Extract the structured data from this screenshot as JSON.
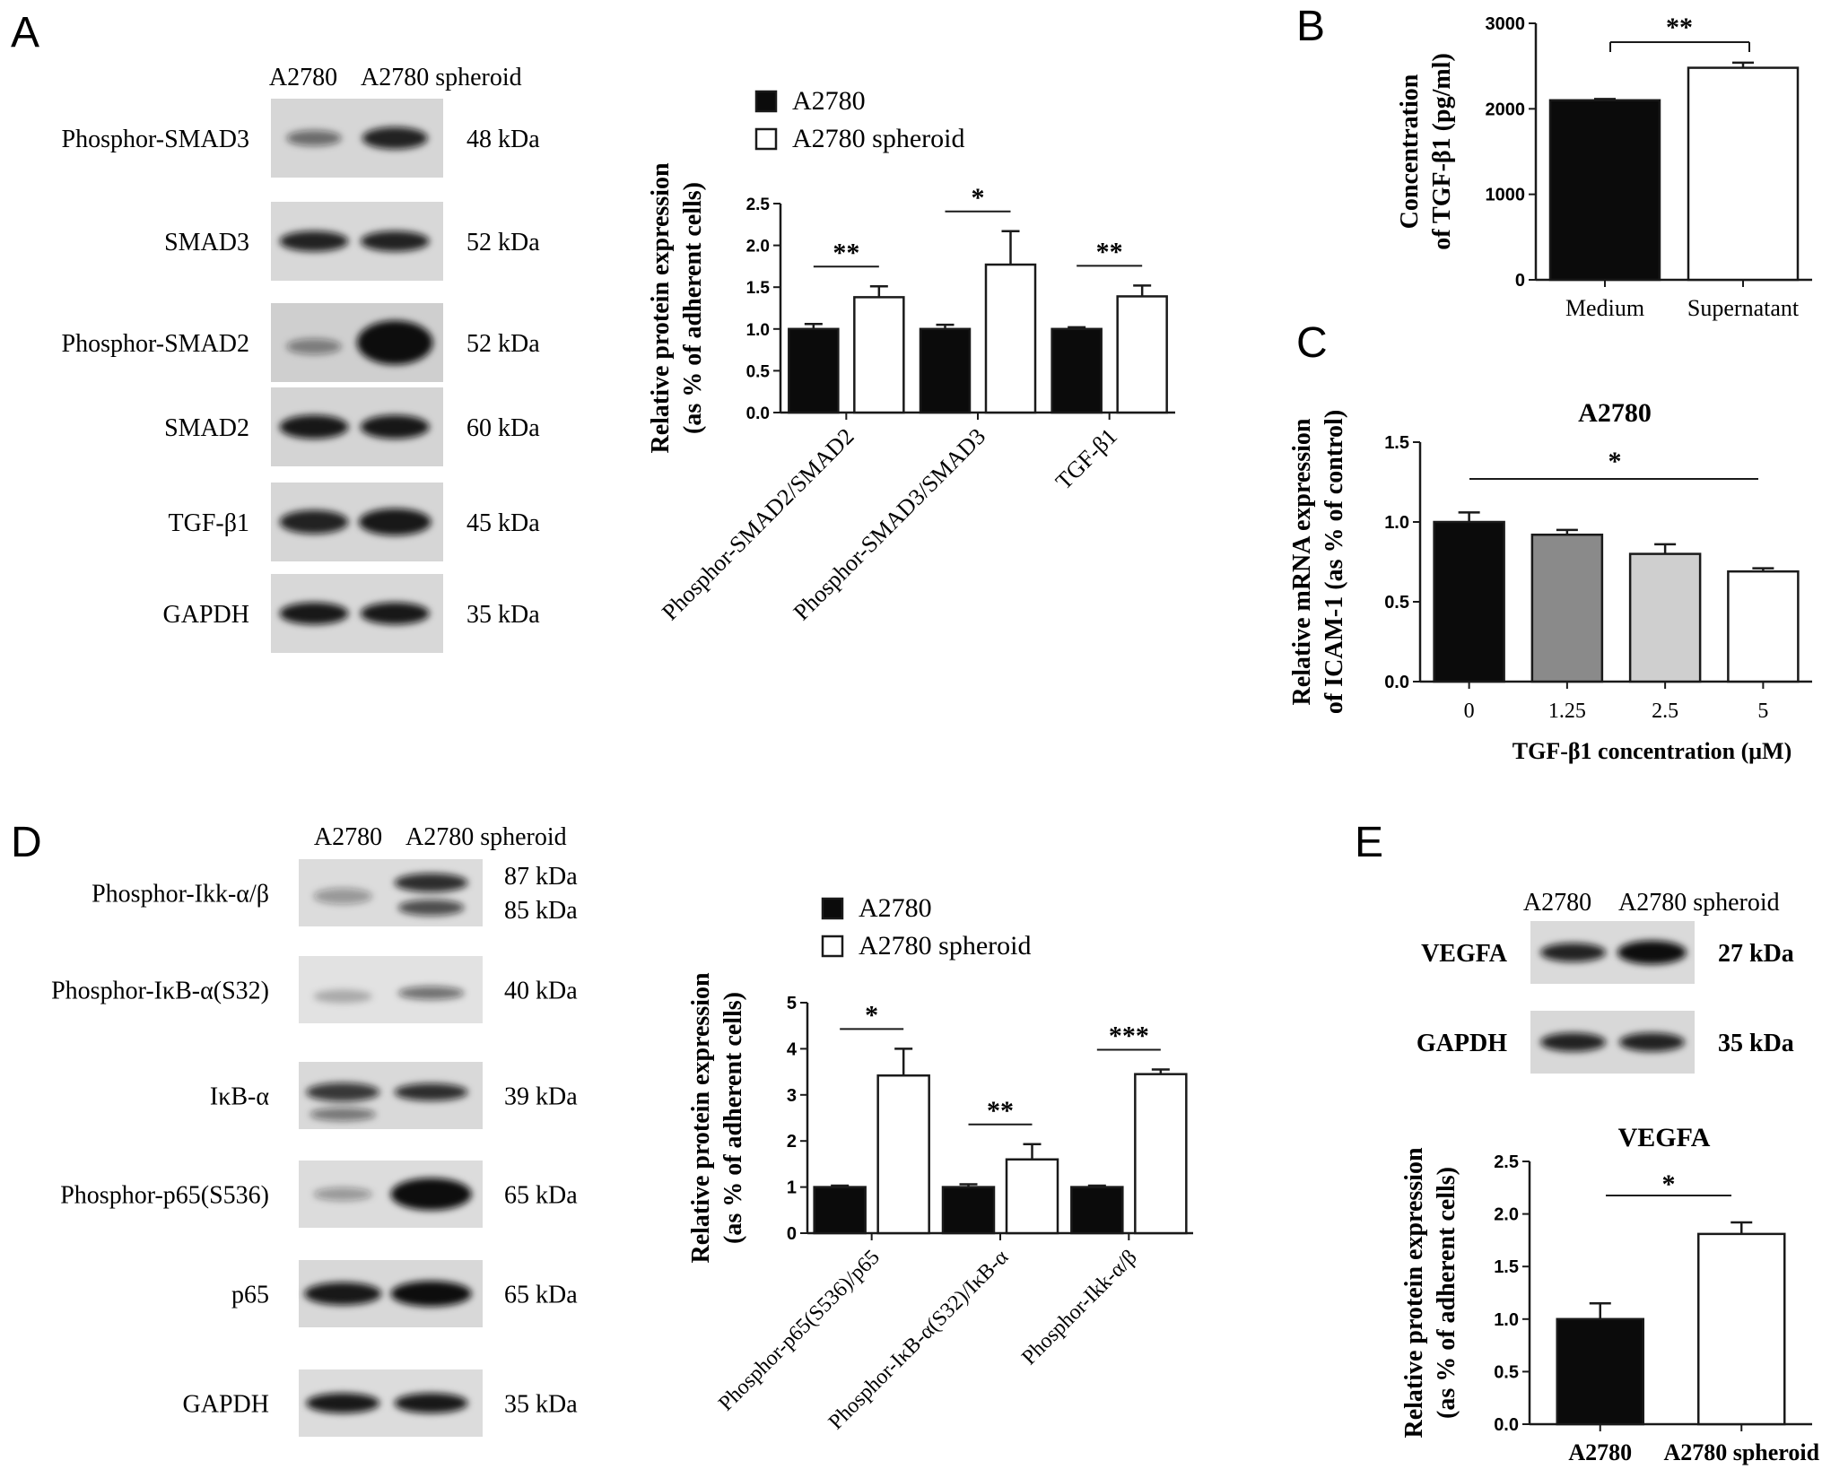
{
  "colors": {
    "black_bar": "#0b0b0b",
    "dark_gray_bar": "#8a8a8a",
    "light_gray_bar": "#cfcfcf",
    "white_bar": "#ffffff",
    "axis": "#1a1a1a"
  },
  "panels": {
    "A": "A",
    "B": "B",
    "C": "C",
    "D": "D",
    "E": "E"
  },
  "blot_A": {
    "lanes": [
      "A2780",
      "A2780 spheroid"
    ],
    "rows": [
      {
        "label": "Phosphor-SMAD3",
        "kda": "48 kDa"
      },
      {
        "label": "SMAD3",
        "kda": "52 kDa"
      },
      {
        "label": "Phosphor-SMAD2",
        "kda": "52 kDa"
      },
      {
        "label": "SMAD2",
        "kda": "60 kDa"
      },
      {
        "label": "TGF-β1",
        "kda": "45 kDa"
      },
      {
        "label": "GAPDH",
        "kda": "35 kDa"
      }
    ]
  },
  "blot_D": {
    "lanes": [
      "A2780",
      "A2780 spheroid"
    ],
    "rows": [
      {
        "label": "Phosphor-Ikk-α/β",
        "kda": "87 kDa",
        "kda2": "85 kDa"
      },
      {
        "label": "Phosphor-IκB-α(S32)",
        "kda": "40 kDa"
      },
      {
        "label": "IκB-α",
        "kda": "39 kDa"
      },
      {
        "label": "Phosphor-p65(S536)",
        "kda": "65 kDa"
      },
      {
        "label": "p65",
        "kda": "65 kDa"
      },
      {
        "label": "GAPDH",
        "kda": "35 kDa"
      }
    ]
  },
  "blot_E": {
    "lanes": [
      "A2780",
      "A2780 spheroid"
    ],
    "rows": [
      {
        "label": "VEGFA",
        "kda": "27 kDa"
      },
      {
        "label": "GAPDH",
        "kda": "35 kDa"
      }
    ]
  },
  "chart_data": [
    {
      "id": "A",
      "type": "bar",
      "title": "",
      "ylabel": "Relative protein expression\n(as % of adherent cells)",
      "categories": [
        "Phosphor-SMAD2/SMAD2",
        "Phosphor-SMAD3/SMAD3",
        "TGF-β1"
      ],
      "series": [
        {
          "name": "A2780",
          "values": [
            1.0,
            1.0,
            1.0
          ],
          "errors": [
            0.06,
            0.05,
            0.02
          ]
        },
        {
          "name": "A2780 spheroid",
          "values": [
            1.38,
            1.77,
            1.39
          ],
          "errors": [
            0.13,
            0.4,
            0.13
          ]
        }
      ],
      "ylim": [
        0,
        2.5
      ],
      "yticks": [
        "0.0",
        "0.5",
        "1.0",
        "1.5",
        "2.0",
        "2.5"
      ],
      "significance": [
        "**",
        "*",
        "**"
      ],
      "legend": [
        "A2780",
        "A2780 spheroid"
      ]
    },
    {
      "id": "B",
      "type": "bar",
      "title": "",
      "ylabel": "Concentration\nof TGF-β1 (pg/ml)",
      "categories": [
        "Medium",
        "Supernatant"
      ],
      "values": [
        2100,
        2480
      ],
      "errors": [
        15,
        60
      ],
      "ylim": [
        0,
        3000
      ],
      "yticks": [
        "0",
        "1000",
        "2000",
        "3000"
      ],
      "significance": "**"
    },
    {
      "id": "C",
      "type": "bar",
      "title": "A2780",
      "ylabel": "Relative mRNA expression\nof ICAM-1 (as % of control)",
      "xlabel": "TGF-β1 concentration (μM)",
      "categories": [
        "0",
        "1.25",
        "2.5",
        "5"
      ],
      "values": [
        1.0,
        0.92,
        0.8,
        0.69
      ],
      "errors": [
        0.06,
        0.03,
        0.06,
        0.02
      ],
      "ylim": [
        0,
        1.5
      ],
      "yticks": [
        "0.0",
        "0.5",
        "1.0",
        "1.5"
      ],
      "significance": "*"
    },
    {
      "id": "D",
      "type": "bar",
      "title": "",
      "ylabel": "Relative protein expression\n(as % of adherent cells)",
      "categories": [
        "Phosphor-p65(S536)/p65",
        "Phosphor-IκB-α(S32)/IκB-α",
        "Phosphor-Ikk-α/β"
      ],
      "series": [
        {
          "name": "A2780",
          "values": [
            1.0,
            1.0,
            1.0
          ],
          "errors": [
            0.03,
            0.06,
            0.03
          ]
        },
        {
          "name": "A2780 spheroid",
          "values": [
            3.42,
            1.6,
            3.45
          ],
          "errors": [
            0.58,
            0.33,
            0.1
          ]
        }
      ],
      "ylim": [
        0,
        5
      ],
      "yticks": [
        "0",
        "1",
        "2",
        "3",
        "4",
        "5"
      ],
      "significance": [
        "*",
        "**",
        "***"
      ],
      "legend": [
        "A2780",
        "A2780 spheroid"
      ]
    },
    {
      "id": "E",
      "type": "bar",
      "title": "VEGFA",
      "ylabel": "Relative protein expression\n(as % of adherent cells)",
      "categories": [
        "A2780",
        "A2780 spheroid"
      ],
      "values": [
        1.0,
        1.81
      ],
      "errors": [
        0.15,
        0.11
      ],
      "ylim": [
        0,
        2.5
      ],
      "yticks": [
        "0.0",
        "0.5",
        "1.0",
        "1.5",
        "2.0",
        "2.5"
      ],
      "significance": "*"
    }
  ]
}
